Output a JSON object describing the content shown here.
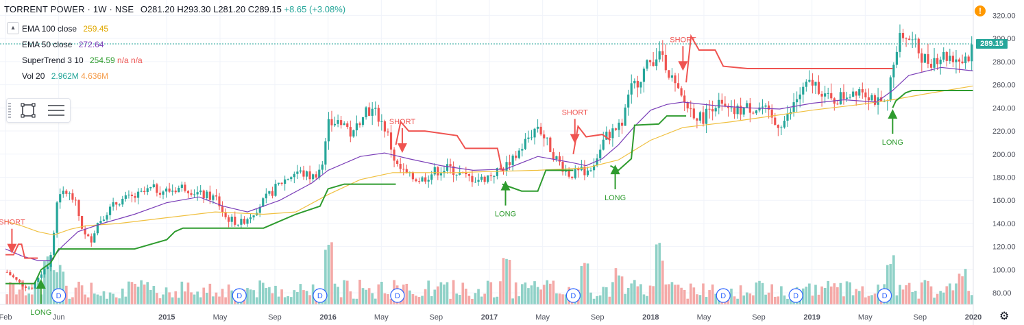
{
  "header": {
    "symbol": "TORRENT POWER · 1W · NSE",
    "ohlc": "O281.20 H293.30 L281.20 C289.15",
    "change": "+8.65 (+3.08%)"
  },
  "legend": [
    {
      "label": "EMA 100 close",
      "value": "259.45",
      "color": "#e0b43c"
    },
    {
      "label": "EMA 50 close",
      "value": "272.64",
      "color": "#7b3fb8"
    },
    {
      "label": "SuperTrend 3 10",
      "value": "254.59",
      "extra": "n/a n/a",
      "color": "#2e9b2e",
      "extra_color": "#ef5350"
    },
    {
      "label": "Vol 20",
      "value": "2.962M",
      "extra": "4.636M",
      "color": "#26a69a",
      "extra_color": "#f59c4a"
    }
  ],
  "price_label": "289.15",
  "colors": {
    "up": "#26a69a",
    "down": "#ef5350",
    "vol_up": "#8fd1c7",
    "vol_down": "#f4a9a7",
    "ema100": "#f0c040",
    "ema50": "#7b3fb8",
    "st_up": "#2e9b2e",
    "st_down": "#ef5350",
    "grid": "#f0f3fa",
    "axis_text": "#50535e"
  },
  "icons": {
    "warning": "warning-icon",
    "settings": "gear-icon",
    "collapse": "chevron-up-icon",
    "rect_tool": "rectangle-icon",
    "menu_tool": "hamburger-icon"
  },
  "chart_data": {
    "type": "candlestick",
    "title": "TORRENT POWER · 1W · NSE",
    "ylim": [
      70,
      325
    ],
    "y_ticks": [
      80,
      100,
      120,
      140,
      160,
      180,
      200,
      220,
      240,
      260,
      280,
      300,
      320
    ],
    "x_ticks": [
      {
        "t": 0.0,
        "label": "Feb"
      },
      {
        "t": 0.33,
        "label": "Jun"
      },
      {
        "t": 1.0,
        "label": "2015"
      },
      {
        "t": 1.33,
        "label": "May"
      },
      {
        "t": 1.67,
        "label": "Sep"
      },
      {
        "t": 2.0,
        "label": "2016"
      },
      {
        "t": 2.33,
        "label": "May"
      },
      {
        "t": 2.67,
        "label": "Sep"
      },
      {
        "t": 3.0,
        "label": "2017"
      },
      {
        "t": 3.33,
        "label": "May"
      },
      {
        "t": 3.67,
        "label": "Sep"
      },
      {
        "t": 4.0,
        "label": "2018"
      },
      {
        "t": 4.33,
        "label": "May"
      },
      {
        "t": 4.67,
        "label": "Sep"
      },
      {
        "t": 5.0,
        "label": "2019"
      },
      {
        "t": 5.33,
        "label": "May"
      },
      {
        "t": 5.67,
        "label": "Sep"
      },
      {
        "t": 6.0,
        "label": "2020"
      }
    ],
    "price_path": [
      [
        0.0,
        98
      ],
      [
        0.08,
        88
      ],
      [
        0.15,
        84
      ],
      [
        0.2,
        95
      ],
      [
        0.25,
        103
      ],
      [
        0.28,
        115
      ],
      [
        0.31,
        160
      ],
      [
        0.36,
        168
      ],
      [
        0.42,
        160
      ],
      [
        0.48,
        130
      ],
      [
        0.52,
        125
      ],
      [
        0.56,
        140
      ],
      [
        0.62,
        150
      ],
      [
        0.7,
        160
      ],
      [
        0.8,
        163
      ],
      [
        0.9,
        170
      ],
      [
        1.0,
        168
      ],
      [
        1.1,
        172
      ],
      [
        1.2,
        165
      ],
      [
        1.3,
        162
      ],
      [
        1.36,
        145
      ],
      [
        1.45,
        140
      ],
      [
        1.52,
        148
      ],
      [
        1.6,
        160
      ],
      [
        1.7,
        175
      ],
      [
        1.8,
        185
      ],
      [
        1.9,
        180
      ],
      [
        1.96,
        190
      ],
      [
        2.0,
        225
      ],
      [
        2.08,
        230
      ],
      [
        2.15,
        215
      ],
      [
        2.22,
        240
      ],
      [
        2.3,
        235
      ],
      [
        2.36,
        220
      ],
      [
        2.42,
        190
      ],
      [
        2.5,
        180
      ],
      [
        2.58,
        178
      ],
      [
        2.66,
        185
      ],
      [
        2.75,
        188
      ],
      [
        2.85,
        180
      ],
      [
        2.95,
        178
      ],
      [
        3.05,
        185
      ],
      [
        3.15,
        195
      ],
      [
        3.22,
        210
      ],
      [
        3.3,
        225
      ],
      [
        3.35,
        212
      ],
      [
        3.42,
        195
      ],
      [
        3.5,
        182
      ],
      [
        3.58,
        185
      ],
      [
        3.65,
        190
      ],
      [
        3.72,
        215
      ],
      [
        3.82,
        225
      ],
      [
        3.88,
        255
      ],
      [
        3.95,
        270
      ],
      [
        4.03,
        285
      ],
      [
        4.07,
        290
      ],
      [
        4.12,
        270
      ],
      [
        4.18,
        250
      ],
      [
        4.24,
        240
      ],
      [
        4.32,
        230
      ],
      [
        4.4,
        245
      ],
      [
        4.5,
        235
      ],
      [
        4.6,
        240
      ],
      [
        4.7,
        240
      ],
      [
        4.78,
        225
      ],
      [
        4.85,
        230
      ],
      [
        4.92,
        250
      ],
      [
        5.0,
        262
      ],
      [
        5.05,
        258
      ],
      [
        5.12,
        245
      ],
      [
        5.2,
        250
      ],
      [
        5.3,
        258
      ],
      [
        5.38,
        250
      ],
      [
        5.44,
        240
      ],
      [
        5.48,
        245
      ],
      [
        5.52,
        290
      ],
      [
        5.58,
        305
      ],
      [
        5.64,
        295
      ],
      [
        5.72,
        280
      ],
      [
        5.8,
        285
      ],
      [
        5.88,
        285
      ],
      [
        5.95,
        280
      ],
      [
        6.0,
        289
      ]
    ],
    "ema100_path": [
      [
        0.0,
        142
      ],
      [
        0.1,
        138
      ],
      [
        0.2,
        133
      ],
      [
        0.3,
        130
      ],
      [
        0.4,
        135
      ],
      [
        0.5,
        138
      ],
      [
        0.7,
        140
      ],
      [
        1.0,
        145
      ],
      [
        1.3,
        150
      ],
      [
        1.6,
        148
      ],
      [
        1.8,
        150
      ],
      [
        2.0,
        165
      ],
      [
        2.2,
        178
      ],
      [
        2.4,
        184
      ],
      [
        2.6,
        184
      ],
      [
        2.8,
        184
      ],
      [
        3.0,
        185
      ],
      [
        3.3,
        186
      ],
      [
        3.6,
        188
      ],
      [
        3.8,
        195
      ],
      [
        4.0,
        212
      ],
      [
        4.2,
        223
      ],
      [
        4.5,
        228
      ],
      [
        4.8,
        234
      ],
      [
        5.0,
        238
      ],
      [
        5.3,
        243
      ],
      [
        5.5,
        247
      ],
      [
        5.7,
        252
      ],
      [
        6.0,
        259
      ]
    ],
    "ema50_path": [
      [
        0.0,
        118
      ],
      [
        0.1,
        112
      ],
      [
        0.2,
        108
      ],
      [
        0.28,
        108
      ],
      [
        0.35,
        120
      ],
      [
        0.45,
        133
      ],
      [
        0.6,
        140
      ],
      [
        0.8,
        148
      ],
      [
        1.0,
        158
      ],
      [
        1.2,
        163
      ],
      [
        1.35,
        155
      ],
      [
        1.5,
        150
      ],
      [
        1.7,
        160
      ],
      [
        1.9,
        175
      ],
      [
        2.0,
        186
      ],
      [
        2.2,
        198
      ],
      [
        2.35,
        201
      ],
      [
        2.5,
        196
      ],
      [
        2.7,
        190
      ],
      [
        2.9,
        186
      ],
      [
        3.1,
        187
      ],
      [
        3.3,
        198
      ],
      [
        3.5,
        193
      ],
      [
        3.6,
        190
      ],
      [
        3.7,
        196
      ],
      [
        3.8,
        208
      ],
      [
        3.9,
        224
      ],
      [
        4.0,
        238
      ],
      [
        4.1,
        243
      ],
      [
        4.2,
        245
      ],
      [
        4.4,
        242
      ],
      [
        4.6,
        240
      ],
      [
        4.8,
        239
      ],
      [
        5.0,
        244
      ],
      [
        5.2,
        247
      ],
      [
        5.4,
        245
      ],
      [
        5.5,
        255
      ],
      [
        5.6,
        268
      ],
      [
        5.8,
        275
      ],
      [
        6.0,
        272
      ]
    ],
    "supertrend": [
      {
        "dir": "short",
        "pts": [
          [
            0.0,
            113
          ],
          [
            0.05,
            113
          ],
          [
            0.08,
            122
          ],
          [
            0.1,
            122
          ],
          [
            0.12,
            110
          ],
          [
            0.2,
            110
          ]
        ]
      },
      {
        "dir": "long",
        "pts": [
          [
            0.0,
            88
          ],
          [
            0.18,
            88
          ],
          [
            0.22,
            100
          ],
          [
            0.28,
            106
          ],
          [
            0.33,
            118
          ],
          [
            0.5,
            118
          ],
          [
            0.8,
            118
          ],
          [
            0.9,
            122
          ],
          [
            1.0,
            126
          ],
          [
            1.05,
            133
          ],
          [
            1.1,
            136
          ],
          [
            1.6,
            136
          ],
          [
            1.7,
            142
          ],
          [
            1.8,
            148
          ],
          [
            1.95,
            155
          ],
          [
            2.0,
            170
          ],
          [
            2.1,
            174
          ],
          [
            2.42,
            174
          ]
        ]
      },
      {
        "dir": "short",
        "pts": [
          [
            2.42,
            208
          ],
          [
            2.45,
            228
          ],
          [
            2.5,
            220
          ],
          [
            2.6,
            220
          ],
          [
            2.8,
            216
          ],
          [
            2.85,
            205
          ],
          [
            3.05,
            205
          ],
          [
            3.08,
            185
          ]
        ]
      },
      {
        "dir": "long",
        "pts": [
          [
            3.08,
            174
          ],
          [
            3.12,
            172
          ],
          [
            3.2,
            168
          ],
          [
            3.3,
            168
          ],
          [
            3.35,
            186
          ],
          [
            3.52,
            186
          ]
        ]
      },
      {
        "dir": "short",
        "pts": [
          [
            3.52,
            200
          ],
          [
            3.55,
            224
          ],
          [
            3.6,
            215
          ],
          [
            3.7,
            217
          ],
          [
            3.75,
            212
          ]
        ]
      },
      {
        "dir": "long",
        "pts": [
          [
            3.75,
            190
          ],
          [
            3.8,
            186
          ],
          [
            3.88,
            196
          ],
          [
            3.9,
            225
          ],
          [
            4.05,
            226
          ],
          [
            4.1,
            233
          ],
          [
            4.22,
            233
          ]
        ]
      },
      {
        "dir": "short",
        "pts": [
          [
            4.22,
            262
          ],
          [
            4.25,
            302
          ],
          [
            4.3,
            290
          ],
          [
            4.4,
            290
          ],
          [
            4.45,
            276
          ],
          [
            4.6,
            274
          ],
          [
            5.0,
            274
          ],
          [
            5.5,
            274
          ]
        ]
      },
      {
        "dir": "long",
        "pts": [
          [
            5.5,
            240
          ],
          [
            5.52,
            246
          ],
          [
            5.58,
            253
          ],
          [
            5.62,
            255
          ],
          [
            6.0,
            255
          ]
        ]
      }
    ],
    "signals": [
      {
        "t": 0.04,
        "type": "SHORT",
        "y": 120
      },
      {
        "t": 0.22,
        "type": "LONG",
        "y": 86
      },
      {
        "t": 2.46,
        "type": "SHORT",
        "y": 207
      },
      {
        "t": 3.1,
        "type": "LONG",
        "y": 171
      },
      {
        "t": 3.53,
        "type": "SHORT",
        "y": 215
      },
      {
        "t": 3.78,
        "type": "LONG",
        "y": 185
      },
      {
        "t": 4.2,
        "type": "SHORT",
        "y": 278
      },
      {
        "t": 5.5,
        "type": "LONG",
        "y": 233
      }
    ],
    "dividends": [
      0.33,
      1.45,
      1.95,
      2.43,
      3.52,
      4.45,
      4.9,
      5.45
    ],
    "volume_spikes": [
      [
        0.25,
        85
      ],
      [
        0.32,
        60
      ],
      [
        2.0,
        110
      ],
      [
        3.1,
        72
      ],
      [
        3.6,
        62
      ],
      [
        3.8,
        55
      ],
      [
        4.05,
        90
      ],
      [
        5.5,
        82
      ],
      [
        5.95,
        55
      ]
    ]
  }
}
